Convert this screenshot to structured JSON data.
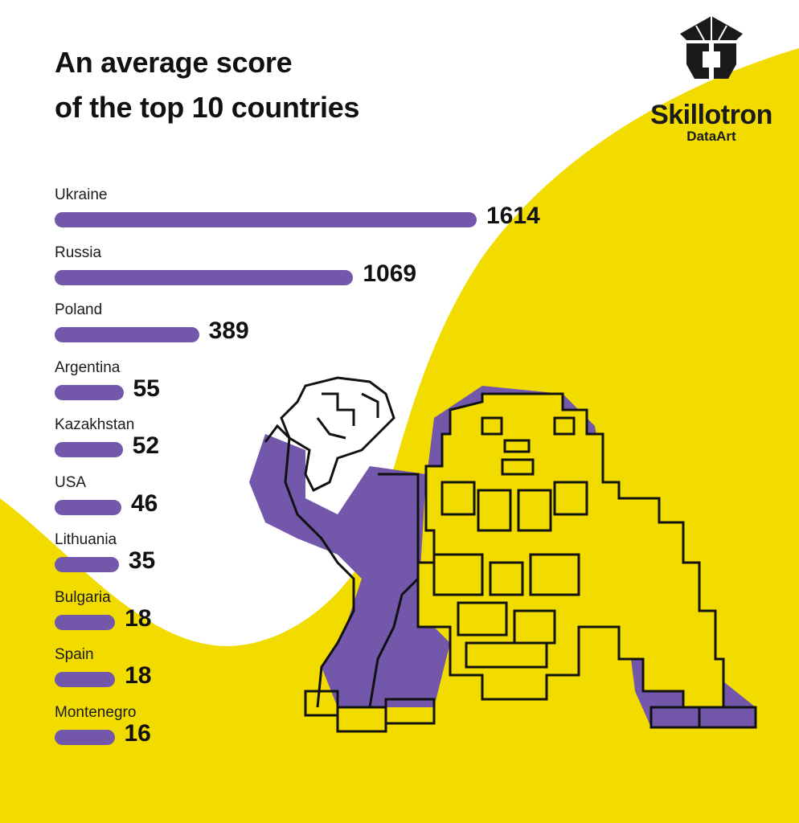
{
  "brand": {
    "name": "Skillotron",
    "sub": "DataArt"
  },
  "colors": {
    "bar": "#7257aa",
    "accent": "#f2dc00",
    "ink": "#111111"
  },
  "chart_data": {
    "type": "bar",
    "orientation": "horizontal",
    "title": "An average score of the top 10 countries",
    "title_lines": [
      "An average score",
      "of the top 10 countries"
    ],
    "categories": [
      "Ukraine",
      "Russia",
      "Poland",
      "Argentina",
      "Kazakhstan",
      "USA",
      "Lithuania",
      "Bulgaria",
      "Spain",
      "Montenegro"
    ],
    "values": [
      1614,
      1069,
      389,
      55,
      52,
      46,
      35,
      18,
      18,
      16
    ],
    "xlabel": "",
    "ylabel": "",
    "grid": false,
    "legend": "none"
  }
}
